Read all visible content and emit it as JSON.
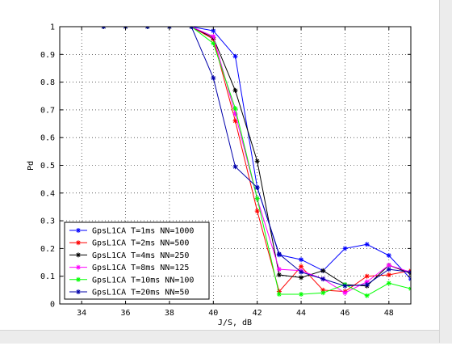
{
  "chart_data": {
    "type": "line",
    "title": "",
    "xlabel": "J/S, dB",
    "ylabel": "Pd",
    "xlim": [
      33,
      49
    ],
    "ylim": [
      0,
      1
    ],
    "xticks": [
      34,
      36,
      38,
      40,
      42,
      44,
      46,
      48
    ],
    "yticks": [
      0,
      0.1,
      0.2,
      0.3,
      0.4,
      0.5,
      0.6,
      0.7,
      0.8,
      0.9,
      1
    ],
    "grid": true,
    "legend_position": "bottom-left",
    "series": [
      {
        "name": "GpsL1CA T=1ms NN=1000",
        "color": "#0000ff",
        "x": [
          35,
          36,
          37,
          38,
          39,
          40,
          41,
          42,
          43,
          44,
          45,
          46,
          47,
          48,
          49
        ],
        "y": [
          1,
          1,
          1,
          1,
          1,
          0.985,
          0.893,
          0.42,
          0.177,
          0.16,
          0.12,
          0.2,
          0.215,
          0.175,
          0.09
        ]
      },
      {
        "name": "GpsL1CA T=2ms NN=500",
        "color": "#ff0000",
        "x": [
          35,
          36,
          37,
          38,
          39,
          40,
          41,
          42,
          43,
          44,
          45,
          46,
          47,
          48,
          49
        ],
        "y": [
          1,
          1,
          1,
          1,
          1,
          0.955,
          0.66,
          0.335,
          0.045,
          0.135,
          0.05,
          0.045,
          0.1,
          0.105,
          0.12
        ]
      },
      {
        "name": "GpsL1CA T=4ms NN=250",
        "color": "#000000",
        "x": [
          35,
          36,
          37,
          38,
          39,
          40,
          41,
          42,
          43,
          44,
          45,
          46,
          47,
          48,
          49
        ],
        "y": [
          1,
          1,
          1,
          1,
          1,
          0.96,
          0.77,
          0.515,
          0.105,
          0.095,
          0.12,
          0.07,
          0.065,
          0.14,
          0.11
        ]
      },
      {
        "name": "GpsL1CA T=8ms NN=125",
        "color": "#ff00ff",
        "x": [
          35,
          36,
          37,
          38,
          39,
          40,
          41,
          42,
          43,
          44,
          45,
          46,
          47,
          48,
          49
        ],
        "y": [
          1,
          1,
          1,
          1,
          1,
          0.965,
          0.685,
          0.38,
          0.125,
          0.12,
          0.09,
          0.04,
          0.08,
          0.14,
          0.115
        ]
      },
      {
        "name": "GpsL1CA T=10ms NN=100",
        "color": "#00ff00",
        "x": [
          35,
          36,
          37,
          38,
          39,
          40,
          41,
          42,
          43,
          44,
          45,
          46,
          47,
          48,
          49
        ],
        "y": [
          1,
          1,
          1,
          1,
          1,
          0.94,
          0.705,
          0.38,
          0.035,
          0.035,
          0.04,
          0.07,
          0.03,
          0.075,
          0.055
        ]
      },
      {
        "name": "GpsL1CA T=20ms NN=50",
        "color": "#0000aa",
        "x": [
          35,
          36,
          37,
          38,
          39,
          40,
          41,
          42,
          43,
          44,
          45,
          46,
          47,
          48,
          49
        ],
        "y": [
          1,
          1,
          1,
          1,
          1,
          0.815,
          0.495,
          0.42,
          0.18,
          0.115,
          0.09,
          0.065,
          0.07,
          0.125,
          0.115
        ]
      }
    ]
  }
}
